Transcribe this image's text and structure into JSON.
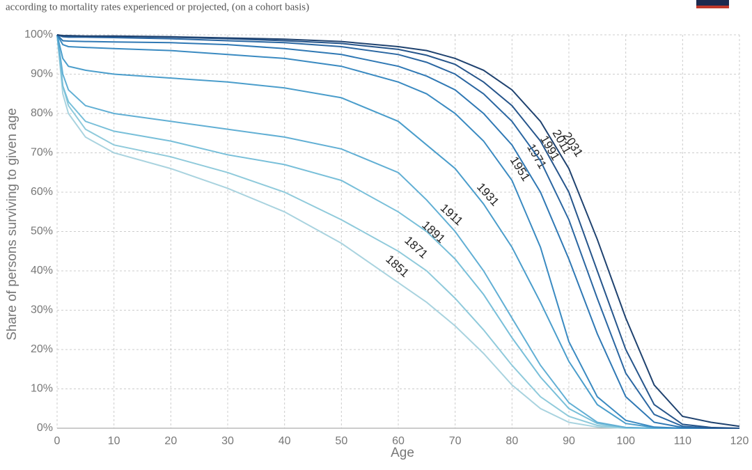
{
  "chart_data": {
    "type": "line",
    "subtitle": "according to mortality rates experienced or projected, (on a cohort basis)",
    "x_label": "Age",
    "y_label": "Share of persons surviving to given age",
    "x": [
      0,
      1,
      2,
      5,
      10,
      20,
      30,
      40,
      50,
      60,
      65,
      70,
      75,
      80,
      85,
      90,
      95,
      100,
      105,
      110,
      115,
      120
    ],
    "xlim": [
      0,
      120
    ],
    "xticks": [
      0,
      10,
      20,
      30,
      40,
      50,
      60,
      70,
      80,
      90,
      100,
      110,
      120
    ],
    "ylim": [
      0,
      100
    ],
    "yticks": [
      {
        "value": 0,
        "label": "0%"
      },
      {
        "value": 10,
        "label": "10%"
      },
      {
        "value": 20,
        "label": "20%"
      },
      {
        "value": 30,
        "label": "30%"
      },
      {
        "value": 40,
        "label": "40%"
      },
      {
        "value": 50,
        "label": "50%"
      },
      {
        "value": 60,
        "label": "60%"
      },
      {
        "value": 70,
        "label": "70%"
      },
      {
        "value": 80,
        "label": "80%"
      },
      {
        "value": 90,
        "label": "90%"
      },
      {
        "value": 100,
        "label": "100%"
      }
    ],
    "grid": true,
    "series": [
      {
        "name": "1851",
        "color": "#a9d3df",
        "values": [
          100,
          85,
          80,
          74,
          70,
          66,
          61,
          55,
          47,
          37,
          32,
          26,
          19,
          11,
          5,
          1.5,
          0.3,
          0,
          0,
          0,
          0,
          0
        ]
      },
      {
        "name": "1871",
        "color": "#8fcadb",
        "values": [
          100,
          87,
          82,
          76,
          72,
          69,
          65,
          60,
          53,
          45,
          40,
          33,
          25,
          16,
          8,
          3,
          0.7,
          0.1,
          0,
          0,
          0,
          0
        ]
      },
      {
        "name": "1891",
        "color": "#78bfd9",
        "values": [
          100,
          87,
          83,
          78,
          75.5,
          73,
          69.5,
          67,
          63,
          55,
          50,
          43,
          34,
          23,
          13,
          5,
          1.2,
          0.2,
          0,
          0,
          0,
          0
        ]
      },
      {
        "name": "1911",
        "color": "#61afd4",
        "values": [
          100,
          90,
          86,
          82,
          80,
          78,
          76,
          74,
          71,
          65,
          58,
          50,
          40,
          28,
          16,
          6.5,
          1.5,
          0.2,
          0,
          0,
          0,
          0
        ]
      },
      {
        "name": "1931",
        "color": "#4a9dcb",
        "values": [
          100,
          94,
          92,
          91,
          90,
          89,
          88,
          86.5,
          84,
          78,
          72,
          66,
          57,
          46,
          32,
          17,
          6,
          1.2,
          0.2,
          0,
          0,
          0
        ]
      },
      {
        "name": "1951",
        "color": "#3a8ac1",
        "values": [
          100,
          97.5,
          97,
          96.8,
          96.5,
          96,
          95,
          94,
          92,
          88,
          85,
          80,
          73,
          63,
          46,
          22,
          8,
          2,
          0.3,
          0,
          0,
          0
        ]
      },
      {
        "name": "1971",
        "color": "#2f78b4",
        "values": [
          100,
          98.5,
          98.4,
          98.3,
          98.2,
          98,
          97.5,
          96.5,
          95,
          92,
          89.5,
          86,
          80,
          72,
          60,
          43,
          24,
          8,
          1.5,
          0.2,
          0,
          0
        ]
      },
      {
        "name": "1991",
        "color": "#2a66a1",
        "values": [
          100,
          99.5,
          99.4,
          99.4,
          99.3,
          99,
          98.5,
          98,
          97,
          95,
          93,
          90,
          85,
          78,
          68,
          53,
          33,
          14,
          3.5,
          0.5,
          0,
          0
        ]
      },
      {
        "name": "2011",
        "color": "#26558b",
        "values": [
          100,
          99.7,
          99.7,
          99.6,
          99.6,
          99.4,
          99,
          98.5,
          97.8,
          96.3,
          94.8,
          92.5,
          88,
          82,
          73,
          60,
          40,
          20,
          6,
          1,
          0.2,
          0
        ]
      },
      {
        "name": "2031",
        "color": "#1f426f",
        "values": [
          100,
          99.8,
          99.8,
          99.7,
          99.7,
          99.5,
          99.2,
          98.9,
          98.3,
          97,
          96,
          94,
          91,
          86,
          78,
          66,
          48,
          28,
          11,
          3,
          1.5,
          0.5
        ]
      }
    ]
  }
}
